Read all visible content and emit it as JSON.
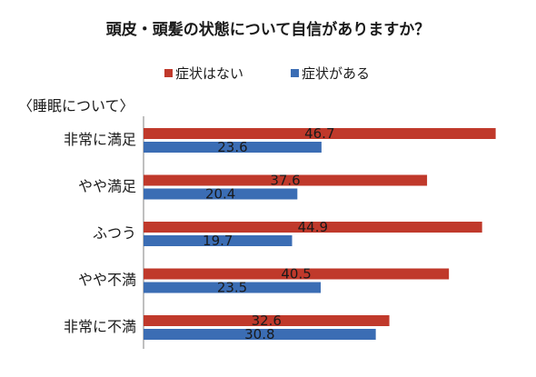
{
  "chart_data": {
    "type": "bar",
    "orientation": "horizontal",
    "title": "頭皮・頭髪の状態について自信がありますか？",
    "group_label": "〈睡眠について〉",
    "categories": [
      "非常に満足",
      "やや満足",
      "ふつう",
      "やや不満",
      "非常に不満"
    ],
    "series": [
      {
        "name": "症状はない",
        "values": [
          46.7,
          37.6,
          44.9,
          40.5,
          32.6
        ],
        "color": "#c0392b"
      },
      {
        "name": "症状がある",
        "values": [
          23.6,
          20.4,
          19.7,
          23.5,
          30.8
        ],
        "color": "#3b6db4"
      }
    ],
    "xlim": [
      0,
      50
    ],
    "legend_position": "top",
    "grid": false
  }
}
